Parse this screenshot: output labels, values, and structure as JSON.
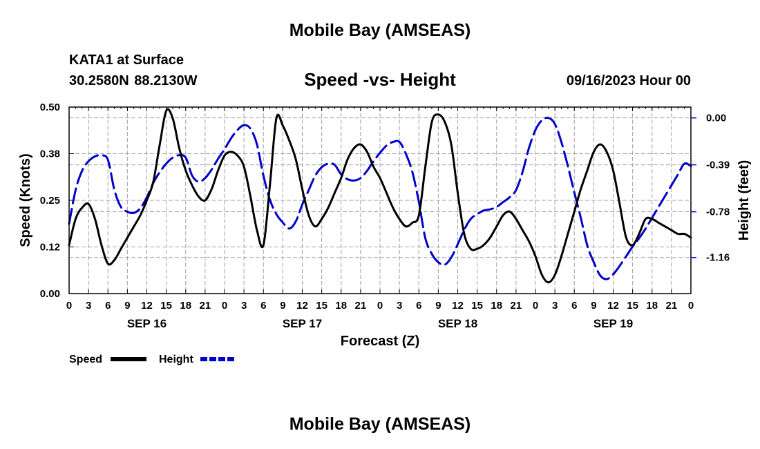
{
  "header": {
    "title": "Mobile Bay (AMSEAS)",
    "station": "KATA1 at Surface",
    "coords": "30.2580N  88.2130W",
    "subtitle": "Speed -vs- Height",
    "datetime": "09/16/2023 Hour 00"
  },
  "footer": {
    "title": "Mobile Bay (AMSEAS)"
  },
  "colors": {
    "speed": "#000000",
    "height": "#0000cc",
    "grid": "#a0a0a0"
  },
  "chart_data": {
    "type": "line",
    "xlabel": "Forecast (Z)",
    "ylabel_left": "Speed (Knots)",
    "ylabel_right": "Height (feet)",
    "x_ticks": [
      "0",
      "3",
      "6",
      "9",
      "12",
      "15",
      "18",
      "21",
      "0",
      "3",
      "6",
      "9",
      "12",
      "15",
      "18",
      "21",
      "0",
      "3",
      "6",
      "9",
      "12",
      "15",
      "18",
      "21",
      "0",
      "3",
      "6",
      "9",
      "12",
      "15",
      "18",
      "21",
      "0"
    ],
    "date_labels": [
      {
        "label": "SEP 16",
        "hour": 12
      },
      {
        "label": "SEP 17",
        "hour": 36
      },
      {
        "label": "SEP 18",
        "hour": 60
      },
      {
        "label": "SEP 19",
        "hour": 84
      }
    ],
    "x_range": [
      0,
      96
    ],
    "y_left": {
      "min": 0,
      "max": 0.5,
      "ticks": [
        "0.00",
        "0.12",
        "0.25",
        "0.38",
        "0.50"
      ],
      "tick_values": [
        0,
        0.125,
        0.25,
        0.375,
        0.5
      ]
    },
    "y_right": {
      "min": -1.46,
      "max": 0.09,
      "ticks": [
        "0.00",
        "-0.39",
        "-0.78",
        "-1.16"
      ],
      "tick_values": [
        0,
        -0.39,
        -0.78,
        -1.16
      ]
    },
    "grid": true,
    "series": [
      {
        "name": "Speed",
        "axis": "left",
        "style": "solid",
        "x": [
          0,
          1,
          2,
          3,
          4,
          5,
          6,
          7,
          8,
          9,
          10,
          11,
          12,
          13,
          14,
          15,
          16,
          17,
          18,
          19,
          20,
          21,
          22,
          23,
          24,
          25,
          26,
          27,
          28,
          29,
          30,
          31,
          32,
          33,
          34,
          35,
          36,
          37,
          38,
          39,
          40,
          41,
          42,
          43,
          44,
          45,
          46,
          47,
          48,
          49,
          50,
          51,
          52,
          53,
          54,
          55,
          56,
          57,
          58,
          59,
          60,
          61,
          62,
          63,
          64,
          65,
          66,
          67,
          68,
          69,
          70,
          71,
          72,
          73,
          74,
          75,
          76,
          77,
          78,
          79,
          80,
          81,
          82,
          83,
          84,
          85,
          86,
          87,
          88,
          89,
          90,
          91,
          92,
          93,
          94,
          95,
          96
        ],
        "values": [
          0.13,
          0.2,
          0.23,
          0.24,
          0.2,
          0.13,
          0.08,
          0.09,
          0.12,
          0.15,
          0.18,
          0.21,
          0.25,
          0.3,
          0.4,
          0.49,
          0.47,
          0.39,
          0.33,
          0.29,
          0.26,
          0.25,
          0.28,
          0.33,
          0.37,
          0.38,
          0.37,
          0.34,
          0.26,
          0.17,
          0.13,
          0.29,
          0.47,
          0.45,
          0.41,
          0.36,
          0.28,
          0.21,
          0.18,
          0.2,
          0.23,
          0.27,
          0.31,
          0.36,
          0.39,
          0.4,
          0.38,
          0.34,
          0.31,
          0.27,
          0.23,
          0.2,
          0.18,
          0.19,
          0.21,
          0.34,
          0.46,
          0.48,
          0.46,
          0.4,
          0.27,
          0.16,
          0.12,
          0.12,
          0.13,
          0.15,
          0.18,
          0.21,
          0.22,
          0.2,
          0.17,
          0.14,
          0.1,
          0.05,
          0.03,
          0.05,
          0.1,
          0.16,
          0.22,
          0.28,
          0.33,
          0.38,
          0.4,
          0.38,
          0.33,
          0.24,
          0.15,
          0.13,
          0.16,
          0.2,
          0.2,
          0.19,
          0.18,
          0.17,
          0.16,
          0.16,
          0.15
        ]
      },
      {
        "name": "Height",
        "axis": "right",
        "style": "dashed",
        "x": [
          0,
          1,
          2,
          3,
          4,
          5,
          6,
          7,
          8,
          9,
          10,
          11,
          12,
          13,
          14,
          15,
          16,
          17,
          18,
          19,
          20,
          21,
          22,
          23,
          24,
          25,
          26,
          27,
          28,
          29,
          30,
          31,
          32,
          33,
          34,
          35,
          36,
          37,
          38,
          39,
          40,
          41,
          42,
          43,
          44,
          45,
          46,
          47,
          48,
          49,
          50,
          51,
          52,
          53,
          54,
          55,
          56,
          57,
          58,
          59,
          60,
          61,
          62,
          63,
          64,
          65,
          66,
          67,
          68,
          69,
          70,
          71,
          72,
          73,
          74,
          75,
          76,
          77,
          78,
          79,
          80,
          81,
          82,
          83,
          84,
          85,
          86,
          87,
          88,
          89,
          90,
          91,
          92,
          93,
          94,
          95,
          96
        ],
        "values": [
          -0.88,
          -0.6,
          -0.44,
          -0.36,
          -0.32,
          -0.31,
          -0.35,
          -0.6,
          -0.74,
          -0.78,
          -0.79,
          -0.75,
          -0.66,
          -0.54,
          -0.45,
          -0.38,
          -0.33,
          -0.31,
          -0.33,
          -0.48,
          -0.53,
          -0.5,
          -0.43,
          -0.34,
          -0.26,
          -0.17,
          -0.1,
          -0.06,
          -0.09,
          -0.22,
          -0.48,
          -0.68,
          -0.8,
          -0.87,
          -0.92,
          -0.86,
          -0.72,
          -0.6,
          -0.48,
          -0.41,
          -0.38,
          -0.39,
          -0.47,
          -0.51,
          -0.52,
          -0.5,
          -0.44,
          -0.36,
          -0.29,
          -0.23,
          -0.2,
          -0.2,
          -0.3,
          -0.45,
          -0.7,
          -1.0,
          -1.13,
          -1.2,
          -1.22,
          -1.16,
          -1.05,
          -0.93,
          -0.84,
          -0.8,
          -0.77,
          -0.76,
          -0.74,
          -0.7,
          -0.66,
          -0.6,
          -0.45,
          -0.25,
          -0.1,
          -0.02,
          0.0,
          -0.05,
          -0.2,
          -0.4,
          -0.62,
          -0.83,
          -1.06,
          -1.2,
          -1.31,
          -1.34,
          -1.3,
          -1.23,
          -1.15,
          -1.07,
          -1.0,
          -0.92,
          -0.83,
          -0.74,
          -0.65,
          -0.56,
          -0.47,
          -0.38,
          -0.4
        ]
      }
    ]
  }
}
